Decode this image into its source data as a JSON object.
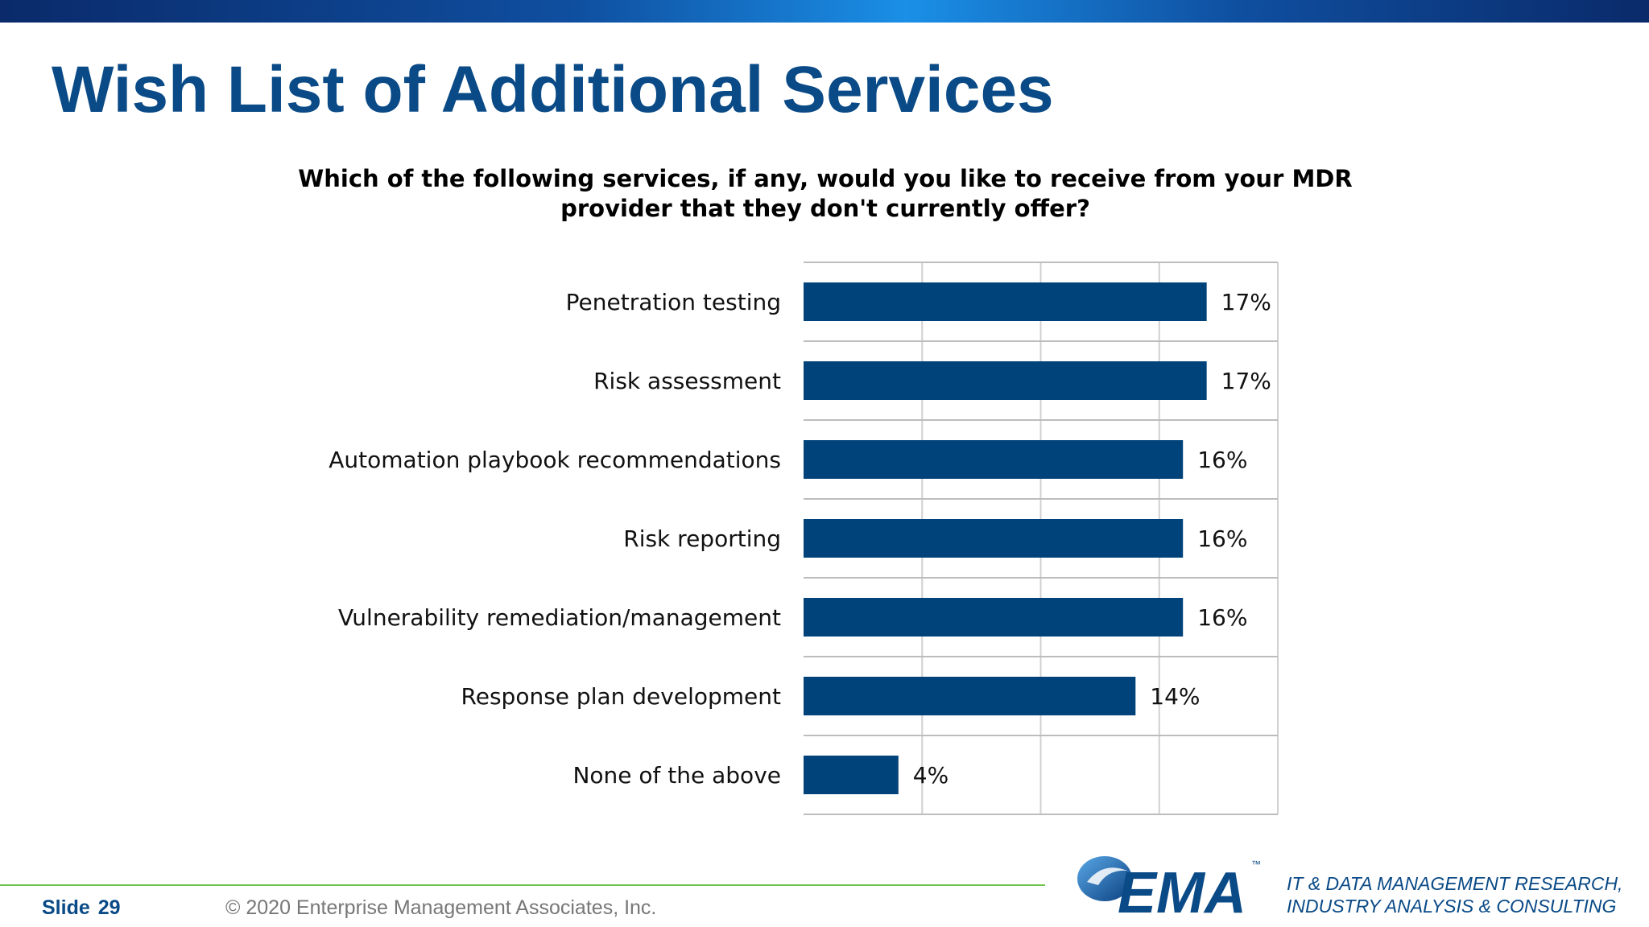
{
  "slide": {
    "title": "Wish List of Additional Services",
    "slide_label": "Slide",
    "slide_number": "29",
    "copyright": "© 2020  Enterprise Management Associates, Inc.",
    "logo_text": "EMA",
    "logo_tm": "™",
    "tagline_line1": "IT & DATA MANAGEMENT RESEARCH,",
    "tagline_line2": "INDUSTRY ANALYSIS & CONSULTING"
  },
  "colors": {
    "title": "#0a4a86",
    "bar": "#00427a",
    "grid": "#d0d0d0",
    "footer_line": "#6cc24a"
  },
  "chart_data": {
    "type": "bar",
    "orientation": "horizontal",
    "title_line1": "Which of the following services, if any, would you like to receive from your MDR",
    "title_line2": "provider that they don't currently offer?",
    "categories": [
      "Penetration testing",
      "Risk assessment",
      "Automation playbook recommendations",
      "Risk reporting",
      "Vulnerability remediation/management",
      "Response plan development",
      "None of the above"
    ],
    "values": [
      17,
      17,
      16,
      16,
      16,
      14,
      4
    ],
    "value_labels": [
      "17%",
      "17%",
      "16%",
      "16%",
      "16%",
      "14%",
      "4%"
    ],
    "xlim": [
      0,
      20
    ],
    "grid": true,
    "legend": "none"
  }
}
